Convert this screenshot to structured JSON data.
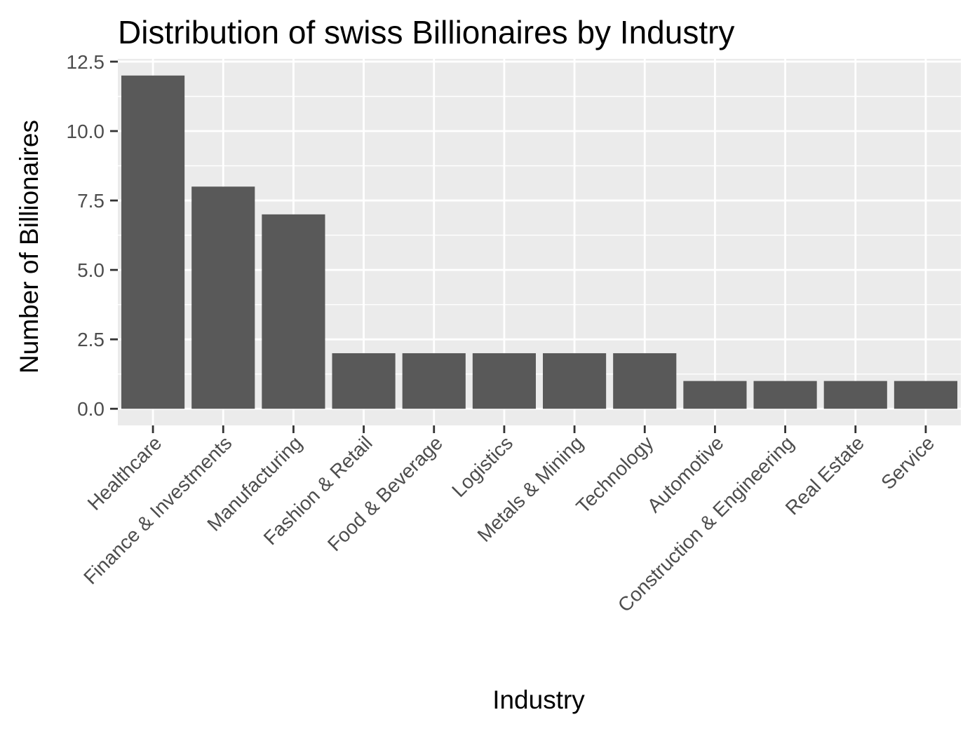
{
  "chart_data": {
    "type": "bar",
    "title": "Distribution of swiss Billionaires by Industry",
    "xlabel": "Industry",
    "ylabel": "Number of Billionaires",
    "categories": [
      "Healthcare",
      "Finance & Investments",
      "Manufacturing",
      "Fashion & Retail",
      "Food & Beverage",
      "Logistics",
      "Metals & Mining",
      "Technology",
      "Automotive",
      "Construction & Engineering",
      "Real Estate",
      "Service"
    ],
    "values": [
      12,
      8,
      7,
      2,
      2,
      2,
      2,
      2,
      1,
      1,
      1,
      1
    ],
    "ylim": [
      -0.6,
      12.6
    ],
    "yticks": [
      "0.0",
      "2.5",
      "5.0",
      "7.5",
      "10.0",
      "12.5"
    ],
    "grid": true,
    "legend": "none",
    "colors": {
      "bar": "#595959",
      "panel": "#ebebeb",
      "grid": "#ffffff",
      "tick": "#333333"
    }
  }
}
